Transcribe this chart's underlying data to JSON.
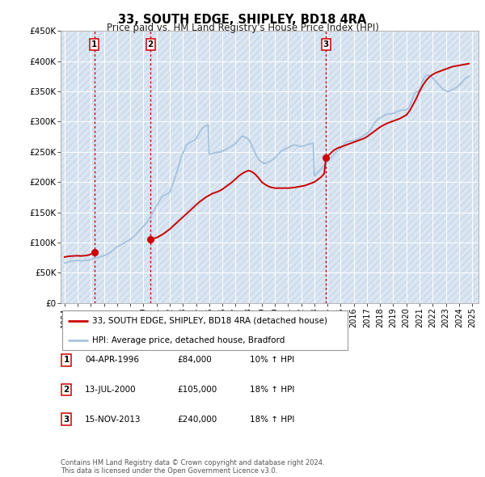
{
  "title": "33, SOUTH EDGE, SHIPLEY, BD18 4RA",
  "subtitle": "Price paid vs. HM Land Registry's House Price Index (HPI)",
  "ylim": [
    0,
    450000
  ],
  "yticks": [
    0,
    50000,
    100000,
    150000,
    200000,
    250000,
    300000,
    350000,
    400000,
    450000
  ],
  "ytick_labels": [
    "£0",
    "£50K",
    "£100K",
    "£150K",
    "£200K",
    "£250K",
    "£300K",
    "£350K",
    "£400K",
    "£450K"
  ],
  "background_color": "#ffffff",
  "plot_bg_color": "#dce6f1",
  "grid_color": "#ffffff",
  "sale_color": "#cc0000",
  "hpi_color": "#a8c4de",
  "vline_color": "#cc0000",
  "sale_dates": [
    1996.26,
    2000.53,
    2013.88
  ],
  "sale_prices": [
    84000,
    105000,
    240000
  ],
  "sale_labels": [
    "1",
    "2",
    "3"
  ],
  "transactions": [
    {
      "label": "1",
      "date": "04-APR-1996",
      "price": "£84,000",
      "hpi": "10% ↑ HPI"
    },
    {
      "label": "2",
      "date": "13-JUL-2000",
      "price": "£105,000",
      "hpi": "18% ↑ HPI"
    },
    {
      "label": "3",
      "date": "15-NOV-2013",
      "price": "£240,000",
      "hpi": "18% ↑ HPI"
    }
  ],
  "legend_line1": "33, SOUTH EDGE, SHIPLEY, BD18 4RA (detached house)",
  "legend_line2": "HPI: Average price, detached house, Bradford",
  "footer": "Contains HM Land Registry data © Crown copyright and database right 2024.\nThis data is licensed under the Open Government Licence v3.0.",
  "xmin": 1993.7,
  "xmax": 2025.5,
  "xtick_years": [
    1994,
    1995,
    1996,
    1997,
    1998,
    1999,
    2000,
    2001,
    2002,
    2003,
    2004,
    2005,
    2006,
    2007,
    2008,
    2009,
    2010,
    2011,
    2012,
    2013,
    2014,
    2015,
    2016,
    2017,
    2018,
    2019,
    2020,
    2021,
    2022,
    2023,
    2024,
    2025
  ],
  "hpi_x": [
    1994.0,
    1994.083,
    1994.167,
    1994.25,
    1994.333,
    1994.417,
    1994.5,
    1994.583,
    1994.667,
    1994.75,
    1994.833,
    1994.917,
    1995.0,
    1995.083,
    1995.167,
    1995.25,
    1995.333,
    1995.417,
    1995.5,
    1995.583,
    1995.667,
    1995.75,
    1995.833,
    1995.917,
    1996.0,
    1996.083,
    1996.167,
    1996.25,
    1996.333,
    1996.417,
    1996.5,
    1996.583,
    1996.667,
    1996.75,
    1996.833,
    1996.917,
    1997.0,
    1997.083,
    1997.167,
    1997.25,
    1997.333,
    1997.417,
    1997.5,
    1997.583,
    1997.667,
    1997.75,
    1997.833,
    1997.917,
    1998.0,
    1998.083,
    1998.167,
    1998.25,
    1998.333,
    1998.417,
    1998.5,
    1998.583,
    1998.667,
    1998.75,
    1998.833,
    1998.917,
    1999.0,
    1999.083,
    1999.167,
    1999.25,
    1999.333,
    1999.417,
    1999.5,
    1999.583,
    1999.667,
    1999.75,
    1999.833,
    1999.917,
    2000.0,
    2000.083,
    2000.167,
    2000.25,
    2000.333,
    2000.417,
    2000.5,
    2000.583,
    2000.667,
    2000.75,
    2000.833,
    2000.917,
    2001.0,
    2001.083,
    2001.167,
    2001.25,
    2001.333,
    2001.417,
    2001.5,
    2001.583,
    2001.667,
    2001.75,
    2001.833,
    2001.917,
    2002.0,
    2002.083,
    2002.167,
    2002.25,
    2002.333,
    2002.417,
    2002.5,
    2002.583,
    2002.667,
    2002.75,
    2002.833,
    2002.917,
    2003.0,
    2003.083,
    2003.167,
    2003.25,
    2003.333,
    2003.417,
    2003.5,
    2003.583,
    2003.667,
    2003.75,
    2003.833,
    2003.917,
    2004.0,
    2004.083,
    2004.167,
    2004.25,
    2004.333,
    2004.417,
    2004.5,
    2004.583,
    2004.667,
    2004.75,
    2004.833,
    2004.917,
    2005.0,
    2005.083,
    2005.167,
    2005.25,
    2005.333,
    2005.417,
    2005.5,
    2005.583,
    2005.667,
    2005.75,
    2005.833,
    2005.917,
    2006.0,
    2006.083,
    2006.167,
    2006.25,
    2006.333,
    2006.417,
    2006.5,
    2006.583,
    2006.667,
    2006.75,
    2006.833,
    2006.917,
    2007.0,
    2007.083,
    2007.167,
    2007.25,
    2007.333,
    2007.417,
    2007.5,
    2007.583,
    2007.667,
    2007.75,
    2007.833,
    2007.917,
    2008.0,
    2008.083,
    2008.167,
    2008.25,
    2008.333,
    2008.417,
    2008.5,
    2008.583,
    2008.667,
    2008.75,
    2008.833,
    2008.917,
    2009.0,
    2009.083,
    2009.167,
    2009.25,
    2009.333,
    2009.417,
    2009.5,
    2009.583,
    2009.667,
    2009.75,
    2009.833,
    2009.917,
    2010.0,
    2010.083,
    2010.167,
    2010.25,
    2010.333,
    2010.417,
    2010.5,
    2010.583,
    2010.667,
    2010.75,
    2010.833,
    2010.917,
    2011.0,
    2011.083,
    2011.167,
    2011.25,
    2011.333,
    2011.417,
    2011.5,
    2011.583,
    2011.667,
    2011.75,
    2011.833,
    2011.917,
    2012.0,
    2012.083,
    2012.167,
    2012.25,
    2012.333,
    2012.417,
    2012.5,
    2012.583,
    2012.667,
    2012.75,
    2012.833,
    2012.917,
    2013.0,
    2013.083,
    2013.167,
    2013.25,
    2013.333,
    2013.417,
    2013.5,
    2013.583,
    2013.667,
    2013.75,
    2013.833,
    2013.917,
    2014.0,
    2014.083,
    2014.167,
    2014.25,
    2014.333,
    2014.417,
    2014.5,
    2014.583,
    2014.667,
    2014.75,
    2014.833,
    2014.917,
    2015.0,
    2015.083,
    2015.167,
    2015.25,
    2015.333,
    2015.417,
    2015.5,
    2015.583,
    2015.667,
    2015.75,
    2015.833,
    2015.917,
    2016.0,
    2016.083,
    2016.167,
    2016.25,
    2016.333,
    2016.417,
    2016.5,
    2016.583,
    2016.667,
    2016.75,
    2016.833,
    2016.917,
    2017.0,
    2017.083,
    2017.167,
    2017.25,
    2017.333,
    2017.417,
    2017.5,
    2017.583,
    2017.667,
    2017.75,
    2017.833,
    2017.917,
    2018.0,
    2018.083,
    2018.167,
    2018.25,
    2018.333,
    2018.417,
    2018.5,
    2018.583,
    2018.667,
    2018.75,
    2018.833,
    2018.917,
    2019.0,
    2019.083,
    2019.167,
    2019.25,
    2019.333,
    2019.417,
    2019.5,
    2019.583,
    2019.667,
    2019.75,
    2019.833,
    2019.917,
    2020.0,
    2020.083,
    2020.167,
    2020.25,
    2020.333,
    2020.417,
    2020.5,
    2020.583,
    2020.667,
    2020.75,
    2020.833,
    2020.917,
    2021.0,
    2021.083,
    2021.167,
    2021.25,
    2021.333,
    2021.417,
    2021.5,
    2021.583,
    2021.667,
    2021.75,
    2021.833,
    2021.917,
    2022.0,
    2022.083,
    2022.167,
    2022.25,
    2022.333,
    2022.417,
    2022.5,
    2022.583,
    2022.667,
    2022.75,
    2022.833,
    2022.917,
    2023.0,
    2023.083,
    2023.167,
    2023.25,
    2023.333,
    2023.417,
    2023.5,
    2023.583,
    2023.667,
    2023.75,
    2023.833,
    2023.917,
    2024.0,
    2024.083,
    2024.167,
    2024.25,
    2024.333,
    2024.417,
    2024.5,
    2024.583,
    2024.667,
    2024.75
  ],
  "hpi_y": [
    66000,
    66500,
    67000,
    67500,
    68000,
    68500,
    69000,
    69200,
    69400,
    69600,
    69800,
    70000,
    70200,
    70000,
    69800,
    69600,
    69700,
    69800,
    70000,
    70200,
    70500,
    70800,
    71200,
    71600,
    72000,
    72500,
    73000,
    73500,
    74000,
    74500,
    75000,
    75500,
    76000,
    76500,
    77000,
    77500,
    78000,
    79000,
    80000,
    81000,
    82000,
    83000,
    84000,
    85500,
    87000,
    88500,
    90000,
    91500,
    93000,
    94000,
    95000,
    96000,
    97000,
    98000,
    99000,
    100000,
    101000,
    102000,
    103000,
    104000,
    105000,
    106500,
    108000,
    109500,
    111000,
    113000,
    115000,
    117000,
    119000,
    121000,
    123000,
    125000,
    127000,
    129000,
    131000,
    133000,
    136000,
    139000,
    142000,
    145000,
    148000,
    151000,
    154000,
    157500,
    161000,
    164000,
    167000,
    170000,
    173000,
    175000,
    177000,
    178000,
    179000,
    180000,
    181000,
    182000,
    184000,
    188000,
    193000,
    198000,
    203000,
    208000,
    214000,
    220000,
    226000,
    232000,
    238000,
    244000,
    248000,
    252000,
    256000,
    260000,
    262000,
    264000,
    265000,
    266000,
    267000,
    268000,
    269000,
    270000,
    272000,
    275000,
    278000,
    281000,
    285000,
    287000,
    289000,
    291000,
    292000,
    293000,
    294000,
    295000,
    246000,
    246500,
    247000,
    247500,
    248000,
    248500,
    249000,
    249200,
    249400,
    249600,
    249800,
    250000,
    251000,
    252000,
    253000,
    254000,
    255000,
    256000,
    257000,
    258000,
    259000,
    260000,
    261000,
    262000,
    264000,
    266000,
    268000,
    270000,
    272000,
    274000,
    275000,
    276000,
    275000,
    274000,
    273000,
    272000,
    270000,
    267000,
    264000,
    260000,
    256000,
    252000,
    248000,
    244000,
    241000,
    238000,
    236000,
    234000,
    233000,
    232000,
    231000,
    231000,
    231500,
    232000,
    233000,
    234000,
    235000,
    236000,
    237000,
    238000,
    240000,
    242000,
    244000,
    246000,
    248000,
    250000,
    251000,
    252000,
    253000,
    254000,
    255000,
    256000,
    257000,
    258000,
    259000,
    260000,
    260500,
    261000,
    261000,
    261000,
    260500,
    260000,
    259500,
    259000,
    259000,
    259500,
    260000,
    260500,
    261000,
    261500,
    262000,
    262500,
    263000,
    263500,
    264000,
    264500,
    210000,
    212000,
    214000,
    216000,
    218000,
    220000,
    222000,
    224000,
    226000,
    228000,
    230000,
    232000,
    234000,
    236000,
    238000,
    240000,
    242000,
    244000,
    246000,
    248000,
    250000,
    252000,
    253000,
    254000,
    256000,
    258000,
    260000,
    262000,
    264000,
    266000,
    267000,
    267500,
    268000,
    268000,
    268000,
    268000,
    268500,
    269000,
    270000,
    271000,
    272000,
    273000,
    274000,
    275000,
    276000,
    277000,
    278000,
    279000,
    280000,
    282000,
    284000,
    286000,
    289000,
    292000,
    295000,
    298000,
    300000,
    302000,
    304000,
    305000,
    306000,
    307000,
    308000,
    309000,
    310000,
    311000,
    312000,
    312500,
    313000,
    313000,
    313000,
    313000,
    313500,
    314000,
    315000,
    316000,
    317000,
    318000,
    318500,
    319000,
    319000,
    319000,
    319000,
    319000,
    319500,
    321000,
    323000,
    326000,
    330000,
    335000,
    340000,
    345000,
    348000,
    349000,
    349500,
    350000,
    352000,
    356000,
    362000,
    368000,
    372000,
    374000,
    376000,
    377000,
    377000,
    376000,
    375000,
    374000,
    372000,
    370000,
    368000,
    366000,
    364000,
    362000,
    360000,
    358000,
    356000,
    354000,
    353000,
    352000,
    351000,
    350000,
    350000,
    350000,
    351000,
    352000,
    353000,
    354000,
    355000,
    356000,
    357000,
    358000,
    360000,
    362000,
    364000,
    366000,
    368000,
    370000,
    372000,
    373000,
    374000,
    375000
  ],
  "sale_seg1_x": [
    1994.0,
    1994.083,
    1994.167,
    1994.25,
    1994.333,
    1994.417,
    1994.5,
    1994.583,
    1994.667,
    1994.75,
    1994.833,
    1994.917,
    1995.0,
    1995.083,
    1995.167,
    1995.25,
    1995.333,
    1995.417,
    1995.5,
    1995.583,
    1995.667,
    1995.75,
    1995.833,
    1995.917,
    1996.26
  ],
  "sale_seg1_y": [
    76000,
    76300,
    76600,
    76900,
    77100,
    77300,
    77500,
    77600,
    77700,
    77800,
    77900,
    78000,
    78000,
    77900,
    77800,
    77700,
    77800,
    77900,
    78100,
    78300,
    78600,
    78900,
    79300,
    79700,
    84000
  ],
  "sale_seg2_x": [
    2000.53,
    2001.0,
    2001.25,
    2001.5,
    2001.75,
    2002.0,
    2002.25,
    2002.5,
    2002.75,
    2003.0,
    2003.25,
    2003.5,
    2003.75,
    2004.0,
    2004.25,
    2004.5,
    2004.75,
    2005.0,
    2005.25,
    2005.5,
    2005.75,
    2006.0,
    2006.25,
    2006.5,
    2006.75,
    2007.0,
    2007.25,
    2007.5,
    2007.75,
    2008.0,
    2008.25,
    2008.5,
    2008.75,
    2009.0,
    2009.25,
    2009.5,
    2009.75,
    2010.0,
    2010.25,
    2010.5,
    2010.75,
    2011.0,
    2011.25,
    2011.5,
    2011.75,
    2012.0,
    2012.25,
    2012.5,
    2012.75,
    2013.0,
    2013.25,
    2013.5,
    2013.75,
    2013.88
  ],
  "sale_seg2_y": [
    105000,
    108000,
    111000,
    114000,
    118000,
    122000,
    127000,
    132000,
    137000,
    142000,
    147000,
    152000,
    157000,
    162000,
    167000,
    171000,
    175000,
    178000,
    181000,
    183000,
    185000,
    188000,
    192000,
    196000,
    200000,
    205000,
    210000,
    214000,
    217000,
    219000,
    217000,
    213000,
    207000,
    200000,
    196000,
    193000,
    191000,
    190000,
    190000,
    190000,
    190000,
    190000,
    190500,
    191000,
    192000,
    193000,
    194000,
    196000,
    198000,
    200000,
    204000,
    208000,
    214000,
    240000
  ],
  "sale_seg3_x": [
    2013.88,
    2014.0,
    2014.25,
    2014.5,
    2014.75,
    2015.0,
    2015.25,
    2015.5,
    2015.75,
    2016.0,
    2016.25,
    2016.5,
    2016.75,
    2017.0,
    2017.25,
    2017.5,
    2017.75,
    2018.0,
    2018.25,
    2018.5,
    2018.75,
    2019.0,
    2019.25,
    2019.5,
    2019.75,
    2020.0,
    2020.25,
    2020.5,
    2020.75,
    2021.0,
    2021.25,
    2021.5,
    2021.75,
    2022.0,
    2022.25,
    2022.5,
    2022.75,
    2023.0,
    2023.25,
    2023.5,
    2023.75,
    2024.0,
    2024.25,
    2024.5,
    2024.75
  ],
  "sale_seg3_y": [
    240000,
    243000,
    248000,
    253000,
    256000,
    258000,
    260000,
    262000,
    264000,
    266000,
    268000,
    270000,
    272000,
    275000,
    279000,
    283000,
    287000,
    291000,
    294000,
    297000,
    299000,
    301000,
    303000,
    305000,
    308000,
    311000,
    318000,
    328000,
    338000,
    350000,
    360000,
    368000,
    374000,
    378000,
    381000,
    383000,
    385000,
    387000,
    389000,
    391000,
    392000,
    393000,
    394000,
    395000,
    396000
  ]
}
